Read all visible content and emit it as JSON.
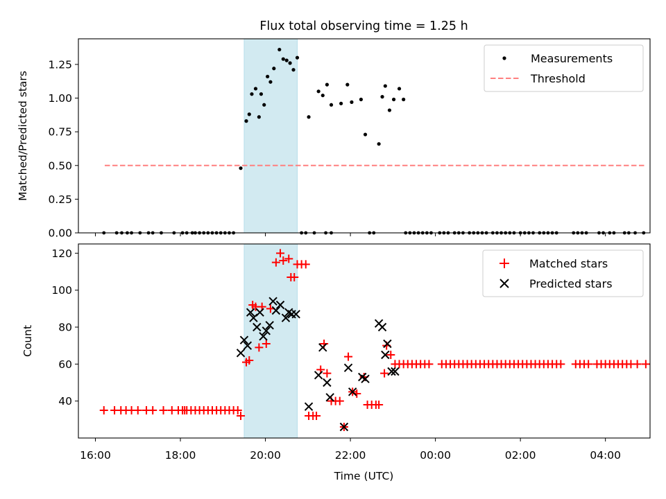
{
  "chart_data": {
    "type": "scatter",
    "title": "Flux total observing time = 1.25 h",
    "xlabel": "Time (UTC)",
    "x_units": "hours since 16:00 UTC (values > 8 cross midnight)",
    "xlim": [
      -0.4,
      13.05
    ],
    "x_ticks": [
      0,
      2,
      4,
      6,
      8,
      10,
      12
    ],
    "x_tick_labels": [
      "16:00",
      "18:00",
      "20:00",
      "22:00",
      "00:00",
      "02:00",
      "04:00"
    ],
    "shaded_interval": [
      3.5,
      4.75
    ],
    "panels": [
      {
        "name": "ratio",
        "ylabel": "Matched/Predicted stars",
        "ylim": [
          0,
          1.44
        ],
        "y_ticks": [
          0,
          0.25,
          0.5,
          0.75,
          1.0,
          1.25
        ],
        "y_tick_labels": [
          "0.00",
          "0.25",
          "0.50",
          "0.75",
          "1.00",
          "1.25"
        ],
        "legend": [
          "Measurements",
          "Threshold"
        ],
        "threshold": {
          "value": 0.5,
          "x_range": [
            0.22,
            12.95
          ],
          "color": "#ff7f7f"
        },
        "measurements": {
          "x": [
            3.42,
            3.55,
            3.62,
            3.68,
            3.77,
            3.85,
            3.9,
            3.97,
            4.05,
            4.12,
            4.2,
            4.33,
            4.42,
            4.5,
            4.58,
            4.66,
            4.75,
            5.02,
            5.25,
            5.35,
            5.45,
            5.55,
            5.78,
            5.93,
            6.03,
            6.25,
            6.35,
            6.67,
            6.75,
            6.82,
            6.92,
            7.02,
            7.15,
            7.25
          ],
          "y": [
            0.48,
            0.83,
            0.88,
            1.03,
            1.07,
            0.86,
            1.03,
            0.95,
            1.16,
            1.12,
            1.22,
            1.36,
            1.29,
            1.28,
            1.26,
            1.21,
            1.3,
            0.86,
            1.05,
            1.02,
            1.1,
            0.95,
            0.96,
            1.1,
            0.97,
            0.99,
            0.73,
            0.66,
            1.01,
            1.09,
            0.91,
            0.99,
            1.07,
            0.99
          ]
        },
        "zero_points_x": [
          0.2,
          0.5,
          0.62,
          0.75,
          0.85,
          1.05,
          1.25,
          1.35,
          1.55,
          1.85,
          2.05,
          2.15,
          2.28,
          2.35,
          2.45,
          2.55,
          2.65,
          2.75,
          2.85,
          2.95,
          3.05,
          3.15,
          3.25,
          4.85,
          4.95,
          5.15,
          5.42,
          5.55,
          6.45,
          6.55,
          7.3,
          7.4,
          7.5,
          7.6,
          7.7,
          7.8,
          7.9,
          8.1,
          8.2,
          8.3,
          8.45,
          8.55,
          8.65,
          8.8,
          8.9,
          9.0,
          9.1,
          9.2,
          9.35,
          9.45,
          9.55,
          9.65,
          9.75,
          9.85,
          10.0,
          10.1,
          10.2,
          10.3,
          10.45,
          10.55,
          10.65,
          10.75,
          10.85,
          11.25,
          11.35,
          11.45,
          11.55,
          11.85,
          11.95,
          12.1,
          12.2,
          12.45,
          12.55,
          12.7,
          12.9
        ]
      },
      {
        "name": "count",
        "ylabel": "Count",
        "ylim": [
          20,
          125
        ],
        "y_ticks": [
          40,
          60,
          80,
          100,
          120
        ],
        "y_tick_labels": [
          "40",
          "60",
          "80",
          "100",
          "120"
        ],
        "legend": [
          "Matched stars",
          "Predicted stars"
        ],
        "series": [
          {
            "name": "Matched stars",
            "marker": "+",
            "color": "#ff0000",
            "x": [
              0.2,
              0.45,
              0.6,
              0.72,
              0.85,
              1.0,
              1.2,
              1.35,
              1.6,
              1.8,
              1.95,
              2.1,
              2.25,
              2.05,
              2.15,
              2.35,
              2.45,
              2.55,
              2.65,
              2.75,
              2.85,
              2.95,
              3.05,
              3.15,
              3.25,
              3.35,
              3.42,
              3.55,
              3.62,
              3.7,
              3.77,
              3.85,
              3.92,
              4.02,
              4.12,
              4.25,
              4.35,
              4.42,
              4.55,
              4.6,
              4.68,
              4.75,
              4.85,
              4.95,
              5.02,
              5.12,
              5.2,
              5.3,
              5.38,
              5.45,
              5.55,
              5.65,
              5.75,
              5.85,
              5.95,
              6.05,
              6.15,
              6.32,
              6.4,
              6.5,
              6.6,
              6.67,
              6.8,
              6.85,
              6.95,
              7.05,
              7.15,
              7.25,
              7.35,
              7.45,
              7.55,
              7.65,
              7.75,
              7.85,
              8.15,
              8.25,
              8.35,
              8.45,
              8.55,
              8.65,
              8.75,
              8.85,
              8.95,
              9.05,
              9.15,
              9.25,
              9.35,
              9.45,
              9.55,
              9.65,
              9.75,
              9.85,
              9.95,
              10.05,
              10.15,
              10.25,
              10.35,
              10.45,
              10.55,
              10.65,
              10.75,
              10.85,
              10.95,
              11.3,
              11.4,
              11.5,
              11.6,
              11.8,
              11.9,
              12.0,
              12.1,
              12.2,
              12.3,
              12.4,
              12.5,
              12.6,
              12.75,
              12.95
            ],
            "y": [
              35,
              35,
              35,
              35,
              35,
              35,
              35,
              35,
              35,
              35,
              35,
              35,
              35,
              35,
              35,
              35,
              35,
              35,
              35,
              35,
              35,
              35,
              35,
              35,
              35,
              35,
              32,
              61,
              62,
              92,
              91,
              69,
              91,
              71,
              90,
              115,
              120,
              116,
              117,
              107,
              107,
              114,
              114,
              114,
              32,
              32,
              32,
              57,
              71,
              55,
              40,
              40,
              40,
              26,
              64,
              45,
              44,
              53,
              38,
              38,
              38,
              38,
              55,
              70,
              65,
              60,
              60,
              60,
              60,
              60,
              60,
              60,
              60,
              60,
              60,
              60,
              60,
              60,
              60,
              60,
              60,
              60,
              60,
              60,
              60,
              60,
              60,
              60,
              60,
              60,
              60,
              60,
              60,
              60,
              60,
              60,
              60,
              60,
              60,
              60,
              60,
              60,
              60,
              60,
              60,
              60,
              60,
              60,
              60,
              60,
              60,
              60,
              60,
              60,
              60,
              60,
              60,
              60
            ]
          },
          {
            "name": "Predicted stars",
            "marker": "x",
            "color": "#000000",
            "x": [
              3.42,
              3.5,
              3.58,
              3.65,
              3.72,
              3.8,
              3.87,
              3.95,
              4.02,
              4.1,
              4.18,
              4.25,
              4.35,
              4.48,
              4.55,
              4.62,
              4.72,
              5.02,
              5.25,
              5.35,
              5.45,
              5.52,
              5.85,
              5.95,
              6.05,
              6.28,
              6.35,
              6.67,
              6.75,
              6.82,
              6.87,
              6.97,
              7.05
            ],
            "y": [
              66,
              73,
              70,
              88,
              85,
              80,
              88,
              75,
              78,
              81,
              94,
              89,
              92,
              85,
              88,
              87,
              87,
              37,
              54,
              69,
              50,
              42,
              26,
              58,
              45,
              53,
              52,
              82,
              80,
              65,
              71,
              56,
              56
            ]
          }
        ]
      }
    ]
  }
}
